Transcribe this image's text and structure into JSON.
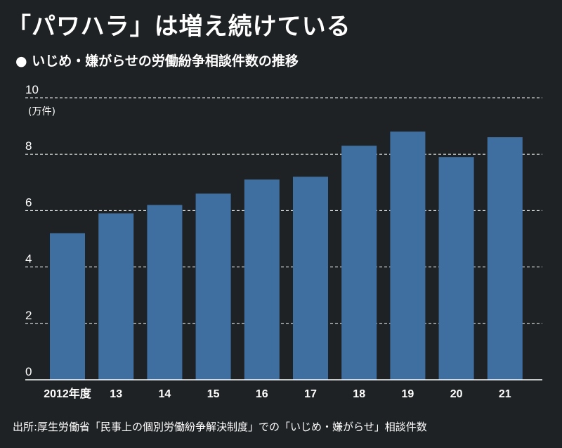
{
  "title": "「パワハラ」は増え続けている",
  "subtitle": "いじめ・嫌がらせの労働紛争相談件数の推移",
  "source": "出所:厚生労働省「民事上の個別労働紛争解決制度」での「いじめ・嫌がらせ」相談件数",
  "colors": {
    "background": "#1f2224",
    "bar": "#3f6fa0",
    "text": "#ffffff",
    "grid": "#ffffff"
  },
  "chart_data": {
    "type": "bar",
    "categories": [
      "2012年度",
      "13",
      "14",
      "15",
      "16",
      "17",
      "18",
      "19",
      "20",
      "21"
    ],
    "values": [
      5.2,
      5.9,
      6.2,
      6.6,
      7.1,
      7.2,
      8.3,
      8.8,
      7.9,
      8.6
    ],
    "ylabel": "(万件)",
    "ylim": [
      0,
      10
    ],
    "yticks": [
      0,
      2,
      4,
      6,
      8,
      10
    ],
    "grid": true,
    "grid_style": "dashed"
  }
}
